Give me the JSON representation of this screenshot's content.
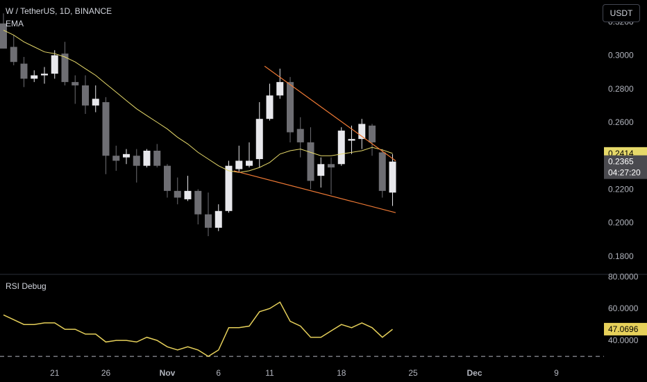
{
  "header": {
    "symbol_title": "W / TetherUS, 1D, BINANCE",
    "indicator_label": "EMA",
    "currency_button": "USDT"
  },
  "rsi_panel": {
    "label": "RSI Debug"
  },
  "colors": {
    "background": "#000000",
    "candle_up": "#e8e8ec",
    "candle_down": "#6e6e73",
    "ema": "#e6d96a",
    "trendline": "#f07a35",
    "rsi_line": "#e6d05a",
    "grid_separator": "#2a2e39"
  },
  "chart_data": [
    {
      "type": "candlestick",
      "title": "W / TetherUS, 1D, BINANCE",
      "y_ticks": [
        "0.3200",
        "0.3000",
        "0.2800",
        "0.2600",
        "0.2400",
        "0.2200",
        "0.2000",
        "0.1800"
      ],
      "ylim": [
        0.17,
        0.333
      ],
      "x_ticks": [
        {
          "label": "21",
          "day": 5
        },
        {
          "label": "26",
          "day": 10
        },
        {
          "label": "Nov",
          "day": 16
        },
        {
          "label": "6",
          "day": 21
        },
        {
          "label": "11",
          "day": 26
        },
        {
          "label": "18",
          "day": 33
        },
        {
          "label": "25",
          "day": 40
        },
        {
          "label": "Dec",
          "day": 46
        },
        {
          "label": "9",
          "day": 54
        }
      ],
      "candles": [
        {
          "o": 0.319,
          "h": 0.325,
          "l": 0.304,
          "c": 0.304
        },
        {
          "o": 0.305,
          "h": 0.312,
          "l": 0.294,
          "c": 0.296
        },
        {
          "o": 0.295,
          "h": 0.299,
          "l": 0.281,
          "c": 0.286
        },
        {
          "o": 0.286,
          "h": 0.291,
          "l": 0.284,
          "c": 0.288
        },
        {
          "o": 0.288,
          "h": 0.293,
          "l": 0.283,
          "c": 0.289
        },
        {
          "o": 0.289,
          "h": 0.303,
          "l": 0.286,
          "c": 0.3
        },
        {
          "o": 0.301,
          "h": 0.308,
          "l": 0.282,
          "c": 0.284
        },
        {
          "o": 0.284,
          "h": 0.288,
          "l": 0.271,
          "c": 0.282
        },
        {
          "o": 0.282,
          "h": 0.288,
          "l": 0.265,
          "c": 0.27
        },
        {
          "o": 0.27,
          "h": 0.282,
          "l": 0.266,
          "c": 0.274
        },
        {
          "o": 0.272,
          "h": 0.275,
          "l": 0.229,
          "c": 0.24
        },
        {
          "o": 0.24,
          "h": 0.246,
          "l": 0.231,
          "c": 0.237
        },
        {
          "o": 0.239,
          "h": 0.244,
          "l": 0.235,
          "c": 0.241
        },
        {
          "o": 0.24,
          "h": 0.244,
          "l": 0.224,
          "c": 0.234
        },
        {
          "o": 0.234,
          "h": 0.244,
          "l": 0.233,
          "c": 0.243
        },
        {
          "o": 0.243,
          "h": 0.247,
          "l": 0.233,
          "c": 0.234
        },
        {
          "o": 0.234,
          "h": 0.235,
          "l": 0.215,
          "c": 0.219
        },
        {
          "o": 0.219,
          "h": 0.227,
          "l": 0.211,
          "c": 0.215
        },
        {
          "o": 0.214,
          "h": 0.228,
          "l": 0.213,
          "c": 0.219
        },
        {
          "o": 0.219,
          "h": 0.22,
          "l": 0.199,
          "c": 0.205
        },
        {
          "o": 0.205,
          "h": 0.218,
          "l": 0.192,
          "c": 0.197
        },
        {
          "o": 0.197,
          "h": 0.211,
          "l": 0.195,
          "c": 0.207
        },
        {
          "o": 0.207,
          "h": 0.237,
          "l": 0.206,
          "c": 0.234
        },
        {
          "o": 0.232,
          "h": 0.246,
          "l": 0.23,
          "c": 0.237
        },
        {
          "o": 0.234,
          "h": 0.248,
          "l": 0.233,
          "c": 0.237
        },
        {
          "o": 0.238,
          "h": 0.272,
          "l": 0.233,
          "c": 0.262
        },
        {
          "o": 0.262,
          "h": 0.283,
          "l": 0.261,
          "c": 0.276
        },
        {
          "o": 0.276,
          "h": 0.292,
          "l": 0.274,
          "c": 0.284
        },
        {
          "o": 0.284,
          "h": 0.287,
          "l": 0.248,
          "c": 0.254
        },
        {
          "o": 0.256,
          "h": 0.263,
          "l": 0.239,
          "c": 0.248
        },
        {
          "o": 0.248,
          "h": 0.257,
          "l": 0.22,
          "c": 0.225
        },
        {
          "o": 0.228,
          "h": 0.239,
          "l": 0.221,
          "c": 0.235
        },
        {
          "o": 0.235,
          "h": 0.239,
          "l": 0.217,
          "c": 0.233
        },
        {
          "o": 0.235,
          "h": 0.257,
          "l": 0.234,
          "c": 0.255
        },
        {
          "o": 0.249,
          "h": 0.258,
          "l": 0.241,
          "c": 0.25
        },
        {
          "o": 0.25,
          "h": 0.262,
          "l": 0.244,
          "c": 0.259
        },
        {
          "o": 0.258,
          "h": 0.259,
          "l": 0.24,
          "c": 0.248
        },
        {
          "o": 0.242,
          "h": 0.244,
          "l": 0.215,
          "c": 0.219
        },
        {
          "o": 0.218,
          "h": 0.241,
          "l": 0.21,
          "c": 0.2365
        }
      ],
      "ema": [
        0.315,
        0.312,
        0.308,
        0.305,
        0.302,
        0.301,
        0.299,
        0.296,
        0.292,
        0.288,
        0.283,
        0.278,
        0.273,
        0.268,
        0.264,
        0.26,
        0.256,
        0.251,
        0.247,
        0.242,
        0.238,
        0.234,
        0.231,
        0.23,
        0.231,
        0.233,
        0.236,
        0.241,
        0.243,
        0.244,
        0.242,
        0.24,
        0.24,
        0.241,
        0.242,
        0.243,
        0.245,
        0.2435,
        0.2414
      ],
      "trendlines": [
        {
          "from": {
            "day": 25.5,
            "price": 0.2935
          },
          "to": {
            "day": 38.3,
            "price": 0.237
          }
        },
        {
          "from": {
            "day": 22.5,
            "price": 0.231
          },
          "to": {
            "day": 38.3,
            "price": 0.206
          }
        }
      ],
      "ema_value_label": "0.2414",
      "last_price_label": "0.2365",
      "countdown_label": "04:27:20"
    },
    {
      "type": "line",
      "title": "RSI Debug",
      "y_ticks": [
        "80.0000",
        "60.0000",
        "40.0000"
      ],
      "ylim": [
        27,
        81
      ],
      "reference_level": 30,
      "values": [
        56,
        53,
        50,
        50,
        51,
        51,
        47,
        47,
        44,
        44,
        39,
        40,
        40,
        39,
        42,
        40,
        36,
        34,
        36,
        34,
        30,
        34,
        48,
        48,
        49,
        58,
        60,
        64,
        52,
        49,
        42,
        42,
        46,
        50,
        48,
        51,
        48,
        42,
        47
      ],
      "last_value_label": "47.0696"
    }
  ]
}
